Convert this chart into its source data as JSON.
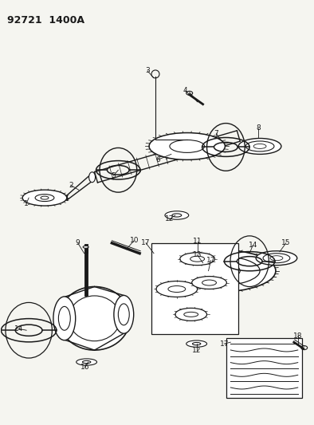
{
  "title": "92721  1400A",
  "bg_color": "#f5f5f0",
  "line_color": "#1a1a1a",
  "figsize": [
    3.94,
    5.33
  ],
  "dpi": 100,
  "title_fontsize": 9,
  "label_fontsize": 6.5
}
